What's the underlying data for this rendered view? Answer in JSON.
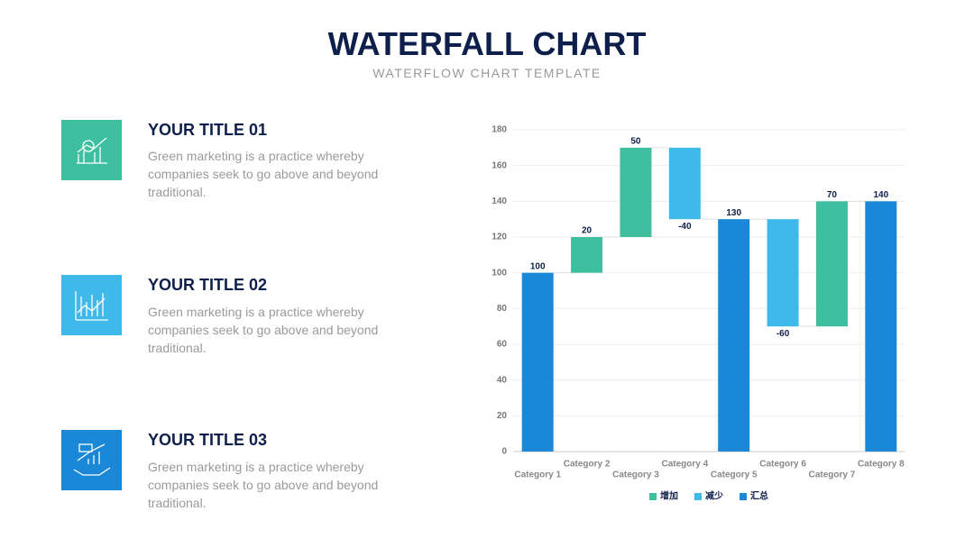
{
  "header": {
    "title": "WATERFALL CHART",
    "subtitle": "WATERFLOW CHART TEMPLATE"
  },
  "items": [
    {
      "title": "YOUR TITLE 01",
      "text": "Green marketing is a practice whereby companies seek to go above and beyond traditional."
    },
    {
      "title": "YOUR TITLE 02",
      "text": "Green marketing is a practice whereby companies seek to go above and beyond traditional."
    },
    {
      "title": "YOUR TITLE 03",
      "text": "Green marketing is a practice whereby companies seek to go above and beyond traditional."
    }
  ],
  "chart_data": {
    "type": "waterfall",
    "categories": [
      "Category 1",
      "Category 2",
      "Category 3",
      "Category 4",
      "Category 5",
      "Category 6",
      "Category 7",
      "Category 8"
    ],
    "series": [
      {
        "name": "增加",
        "color": "#3dbfa0",
        "values": [
          null,
          20,
          50,
          null,
          null,
          null,
          70,
          null
        ]
      },
      {
        "name": "减少",
        "color": "#3fb8ea",
        "values": [
          null,
          null,
          null,
          -40,
          null,
          -60,
          null,
          null
        ]
      },
      {
        "name": "汇总",
        "color": "#1a88d6",
        "total": true,
        "values": [
          100,
          null,
          null,
          null,
          130,
          null,
          null,
          140
        ]
      }
    ],
    "ylim": [
      0,
      180
    ],
    "yticks": [
      0,
      20,
      40,
      60,
      80,
      100,
      120,
      140,
      160,
      180
    ],
    "grid": true
  }
}
